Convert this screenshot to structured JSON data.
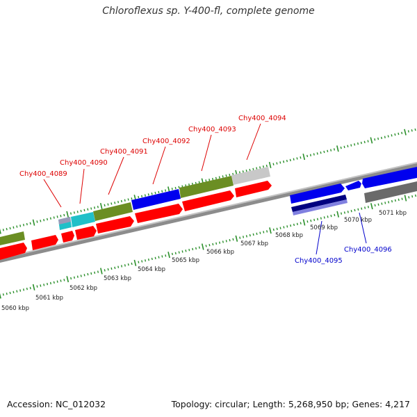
{
  "title": "Chloroflexus sp. Y-400-fl, complete genome",
  "accession": "Accession: NC_012032",
  "summary": "Topology: circular; Length: 5,268,950 bp; Genes: 4,217",
  "colors": {
    "backbone": "#888888",
    "tick": "#2a8f2a",
    "red": "#ff0000",
    "blue": "#0000ee",
    "olive": "#6b8e23",
    "cyan": "#20c0c8",
    "gray": "#c8c8c8",
    "darkgray": "#6a6a6a",
    "navy": "#000080",
    "lavender": "#8080e0",
    "label_red": "#dd0000",
    "label_blue": "#0000cc"
  },
  "scale_labels": [
    "5060 kbp",
    "5061 kbp",
    "5062 kbp",
    "5063 kbp",
    "5064 kbp",
    "5065 kbp",
    "5066 kbp",
    "5067 kbp",
    "5068 kbp",
    "5069 kbp",
    "5070 kbp",
    "5071 kbp"
  ],
  "gene_labels": {
    "top": [
      "Chy400_4089",
      "Chy400_4090",
      "Chy400_4091",
      "Chy400_4092",
      "Chy400_4093",
      "Chy400_4094"
    ],
    "bottom": [
      "Chy400_4095",
      "Chy400_4096"
    ]
  }
}
